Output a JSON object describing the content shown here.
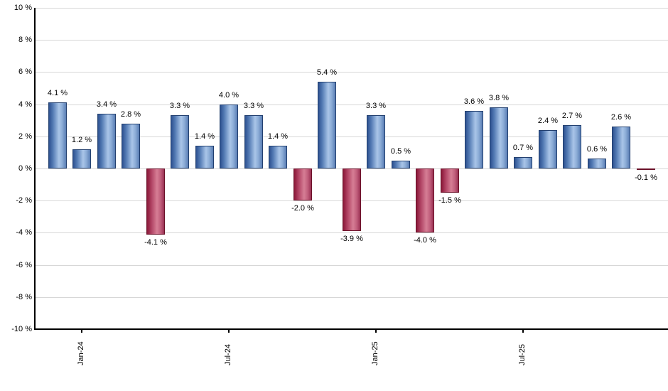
{
  "chart_data": {
    "type": "bar",
    "title": "",
    "xlabel": "",
    "ylabel": "",
    "ylim": [
      -10,
      10
    ],
    "grid": true,
    "legend": "none",
    "values": [
      4.1,
      1.2,
      3.4,
      2.8,
      -4.1,
      3.3,
      1.4,
      4.0,
      3.3,
      1.4,
      -2.0,
      5.4,
      -3.9,
      3.3,
      0.5,
      -4.0,
      -1.5,
      3.6,
      3.8,
      0.7,
      2.4,
      2.7,
      0.6,
      2.6,
      -0.1
    ],
    "bar_labels": [
      "4.1 %",
      "1.2 %",
      "3.4 %",
      "2.8 %",
      "-4.1 %",
      "3.3 %",
      "1.4 %",
      "4.0 %",
      "3.3 %",
      "1.4 %",
      "-2.0 %",
      "5.4 %",
      "-3.9 %",
      "3.3 %",
      "0.5 %",
      "-4.0 %",
      "-1.5 %",
      "3.6 %",
      "3.8 %",
      "0.7 %",
      "2.4 %",
      "2.7 %",
      "0.6 %",
      "2.6 %",
      "-0.1 %"
    ],
    "x_ticks": [
      {
        "index": 1,
        "label": "Jan-24"
      },
      {
        "index": 7,
        "label": "Jul-24"
      },
      {
        "index": 13,
        "label": "Jan-25"
      },
      {
        "index": 19,
        "label": "Jul-25"
      }
    ],
    "y_ticks": [
      {
        "value": 10,
        "label": "10 %"
      },
      {
        "value": 8,
        "label": "8 %"
      },
      {
        "value": 6,
        "label": "6 %"
      },
      {
        "value": 4,
        "label": "4 %"
      },
      {
        "value": 2,
        "label": "2 %"
      },
      {
        "value": 0,
        "label": "0 %"
      },
      {
        "value": -2,
        "label": "-2 %"
      },
      {
        "value": -4,
        "label": "-4 %"
      },
      {
        "value": -6,
        "label": "-6 %"
      },
      {
        "value": -8,
        "label": "-8 %"
      },
      {
        "value": -10,
        "label": "-10 %"
      }
    ],
    "colors": {
      "positive_dark": "#2d5190",
      "positive_light": "#a9c5e8",
      "positive_border": "#23406f",
      "negative_dark": "#8a1838",
      "negative_light": "#d67e95",
      "negative_border": "#6b1129",
      "gridline": "#d7d7d7",
      "axis": "#000000",
      "text": "#000000"
    }
  }
}
